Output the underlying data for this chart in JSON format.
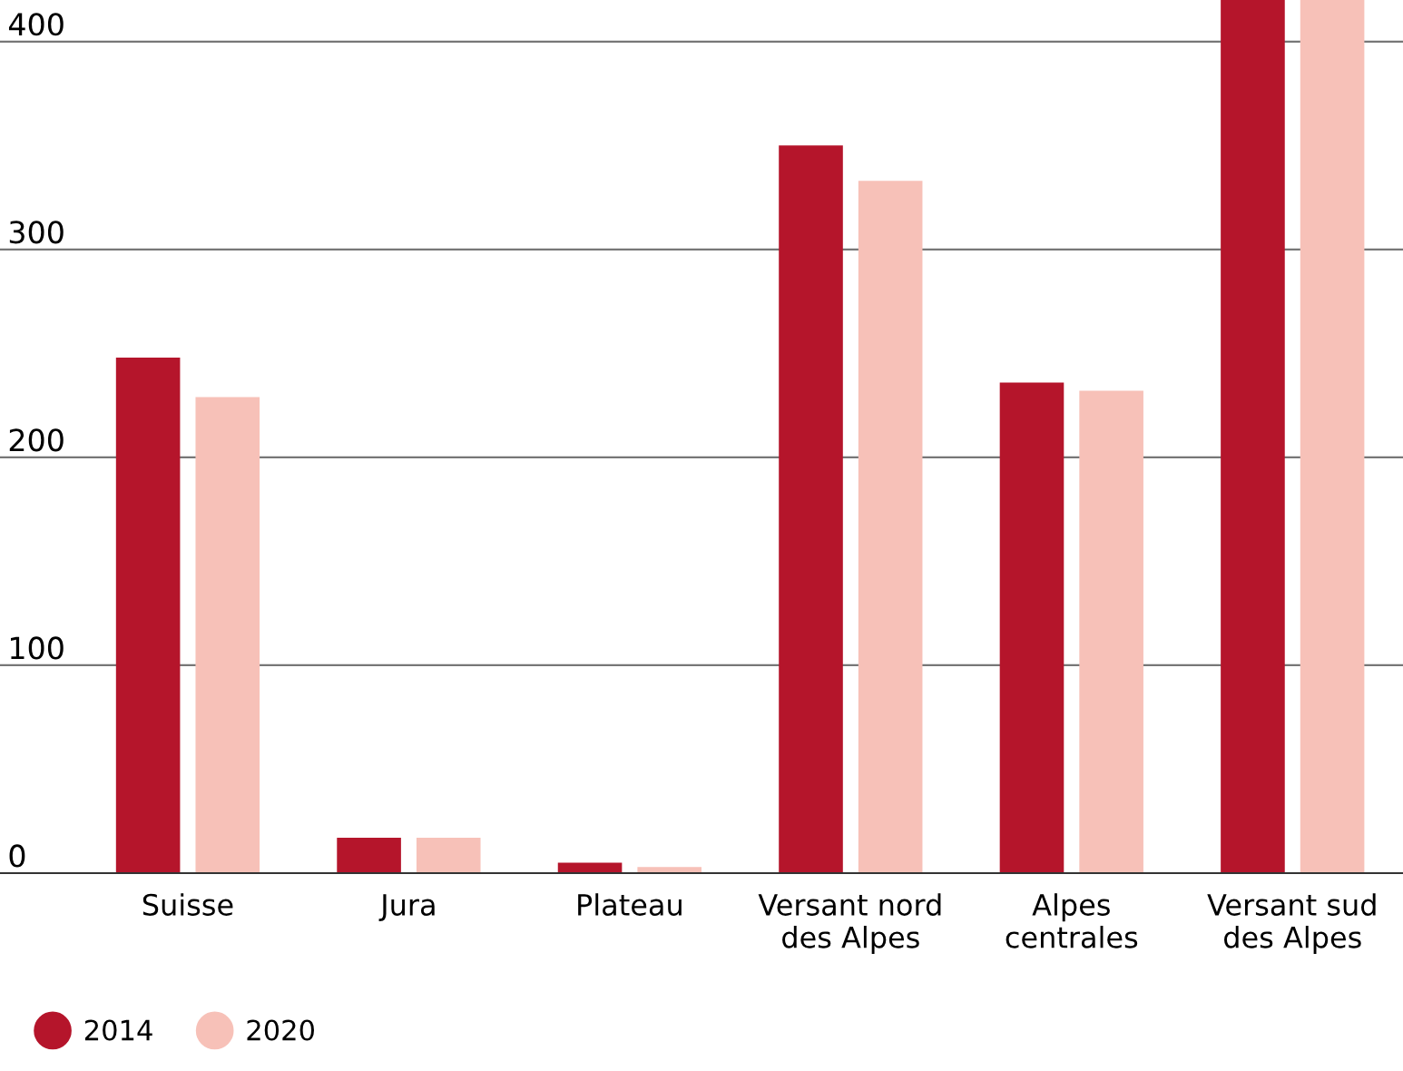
{
  "chart_data": {
    "type": "bar",
    "categories": [
      "Suisse",
      "Jura",
      "Plateau",
      "Versant nord\ndes Alpes",
      "Alpes\ncentrales",
      "Versant sud\ndes Alpes"
    ],
    "series": [
      {
        "name": "2014",
        "color": "#b5152b",
        "values": [
          248,
          17,
          5,
          350,
          236,
          420
        ]
      },
      {
        "name": "2020",
        "color": "#f7c1b8",
        "values": [
          229,
          17,
          3,
          333,
          232,
          420
        ]
      }
    ],
    "ylim": [
      0,
      420
    ],
    "yticks": [
      0,
      100,
      200,
      300,
      400
    ],
    "grid": "y",
    "legend": "bottom left"
  }
}
